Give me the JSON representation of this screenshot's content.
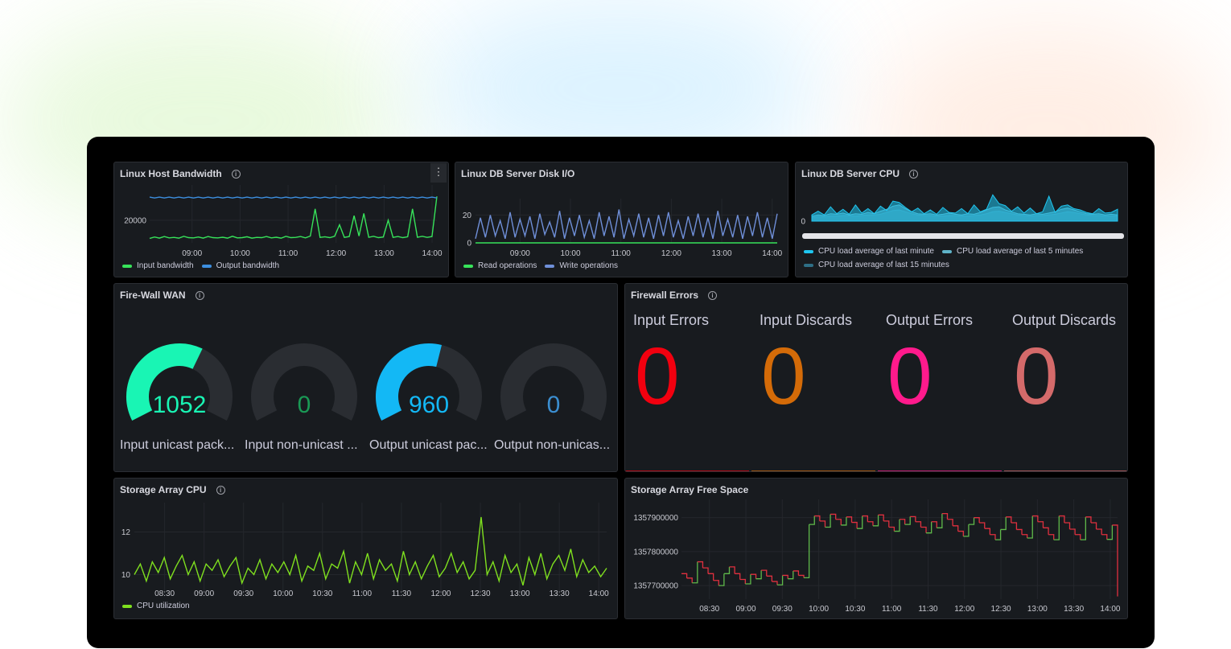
{
  "colors": {
    "green": "#37e35a",
    "blue": "#3d8fe0",
    "teal": "#19f5b4",
    "cyan": "#13b8f5",
    "darkgreen": "#1a9955",
    "steel": "#3b8ed0",
    "red": "#f2000f",
    "orange": "#d46b08",
    "pink": "#ff1a8c",
    "salmon": "#d46a6a",
    "cpu_green": "#7fe01f",
    "rise": "#5fb94a",
    "fall": "#e0303f"
  },
  "panels": {
    "bandwidth": {
      "title": "Linux Host Bandwidth",
      "info_icon": "info-icon",
      "menu_icon": "kebab-menu-icon"
    },
    "disk": {
      "title": "Linux DB Server Disk I/O"
    },
    "dbcpu": {
      "title": "Linux DB Server CPU",
      "info_icon": "info-icon"
    },
    "wan": {
      "title": "Fire-Wall WAN",
      "info_icon": "info-icon"
    },
    "fwerr": {
      "title": "Firewall Errors",
      "info_icon": "info-icon"
    },
    "stcpu": {
      "title": "Storage Array CPU",
      "info_icon": "info-icon"
    },
    "free": {
      "title": "Storage Array Free Space"
    }
  },
  "gauges": [
    {
      "label": "Input unicast pack...",
      "value": "1052",
      "fill_percent": 61,
      "color": "#19f5b4"
    },
    {
      "label": "Input non-unicast ...",
      "value": "0",
      "fill_percent": 0,
      "color": "#1a9955"
    },
    {
      "label": "Output unicast pac...",
      "value": "960",
      "fill_percent": 56,
      "color": "#13b8f5"
    },
    {
      "label": "Output non-unicas...",
      "value": "0",
      "fill_percent": 0,
      "color": "#3b8ed0"
    }
  ],
  "firewall_errors": [
    {
      "label": "Input Errors",
      "value": "0",
      "color": "#f2000f"
    },
    {
      "label": "Input Discards",
      "value": "0",
      "color": "#d46b08"
    },
    {
      "label": "Output Errors",
      "value": "0",
      "color": "#ff1a8c"
    },
    {
      "label": "Output Discards",
      "value": "0",
      "color": "#d46a6a"
    }
  ],
  "chart_data": [
    {
      "id": "bandwidth",
      "type": "line",
      "x_range": [
        "08:07",
        "14:06"
      ],
      "xticks": [
        "09:00",
        "10:00",
        "11:00",
        "12:00",
        "13:00",
        "14:00"
      ],
      "yticks": [
        20000
      ],
      "ylim": [
        10000,
        32000
      ],
      "legend": "bottom",
      "series": [
        {
          "name": "Input bandwidth",
          "color": "#37e35a",
          "values": [
            12000,
            12600,
            12100,
            12800,
            12200,
            12400,
            12100,
            12900,
            12300,
            12200,
            12600,
            12100,
            12800,
            12300,
            12200,
            12500,
            12100,
            12900,
            12200,
            12300,
            12700,
            12100,
            12400,
            12300,
            12800,
            12200,
            12500,
            12100,
            12900,
            12300,
            12400,
            12800,
            12200,
            13000,
            25000,
            12400,
            12700,
            12300,
            12900,
            18000,
            12400,
            12800,
            22000,
            13000,
            23000,
            12500,
            12900,
            12300,
            12600,
            20000,
            12400,
            12800,
            12300,
            12700,
            25000,
            12500,
            12900,
            12400,
            12800,
            30500
          ]
        },
        {
          "name": "Output bandwidth",
          "color": "#3d8fe0",
          "values": [
            30200,
            29800,
            30200,
            29800,
            30200,
            29800,
            30200,
            29800,
            30200,
            29800,
            30200,
            29800,
            30200,
            29800,
            30200,
            29800,
            30200,
            29800,
            30200,
            29800,
            30200,
            29800,
            30200,
            29800,
            30200,
            29800,
            30200,
            29800,
            30200,
            29800,
            30200,
            29800,
            30200,
            29800,
            30200,
            29800,
            30200,
            29800,
            30200,
            29800,
            30200,
            29800,
            30200,
            29800,
            30200,
            29800,
            30200,
            29800,
            30200,
            29800,
            30200,
            29800,
            30200,
            29800,
            30200,
            29800,
            30200,
            29800,
            30200,
            29800
          ]
        }
      ]
    },
    {
      "id": "disk",
      "type": "line",
      "x_range": [
        "08:07",
        "14:06"
      ],
      "xticks": [
        "09:00",
        "10:00",
        "11:00",
        "12:00",
        "13:00",
        "14:00"
      ],
      "yticks": [
        0,
        20
      ],
      "ylim": [
        0,
        26
      ],
      "legend": "bottom",
      "series": [
        {
          "name": "Read operations",
          "color": "#37e35a",
          "values": [
            0,
            0,
            0,
            0,
            0,
            0,
            0,
            0,
            0,
            0,
            0,
            0,
            0,
            0,
            0,
            0,
            0,
            0,
            0,
            0,
            0,
            0,
            0,
            0,
            0,
            0,
            0,
            0,
            0,
            0,
            0,
            0,
            0,
            0,
            0,
            0,
            0,
            0,
            0,
            0
          ]
        },
        {
          "name": "Write operations",
          "color": "#6f8fd8",
          "values": [
            3,
            18,
            4,
            20,
            5,
            16,
            3,
            22,
            4,
            17,
            5,
            19,
            3,
            21,
            6,
            15,
            4,
            23,
            3,
            18,
            5,
            20,
            4,
            16,
            3,
            22,
            5,
            19,
            4,
            24,
            3,
            17,
            5,
            21,
            4,
            18,
            3,
            20,
            5,
            22,
            4,
            16,
            3,
            19,
            5,
            21,
            4,
            18,
            3,
            23,
            5,
            17,
            4,
            20,
            3,
            19,
            5,
            22,
            4,
            18,
            3,
            21
          ]
        }
      ]
    },
    {
      "id": "dbcpu",
      "type": "area",
      "x_range": [
        "08:07",
        "14:06"
      ],
      "xticks": [],
      "yticks": [
        0
      ],
      "ylim": [
        0,
        4.5
      ],
      "legend": "bottom",
      "series": [
        {
          "name": "CPU load average of last 15 minutes",
          "color": "#2e6f86",
          "values": [
            0.6,
            0.7,
            0.7,
            0.8,
            0.8,
            0.9,
            0.9,
            0.8,
            0.9,
            1.0,
            1.0,
            1.1,
            1.4,
            1.7,
            1.8,
            1.5,
            1.2,
            1.0,
            0.9,
            0.9,
            0.8,
            0.8,
            0.9,
            0.9,
            0.8,
            0.8,
            0.9,
            1.0,
            1.2,
            1.5,
            1.6,
            1.4,
            1.2,
            1.0,
            0.9,
            0.8,
            0.9,
            0.9,
            1.0,
            1.1,
            1.3,
            1.5,
            1.4,
            1.2,
            1.0,
            0.9,
            0.9,
            0.8,
            0.8,
            0.8
          ]
        },
        {
          "name": "CPU load average of last 5 minutes",
          "color": "#5fb3c8",
          "values": [
            0.8,
            1.0,
            0.9,
            1.2,
            1.1,
            1.3,
            1.0,
            1.2,
            1.1,
            1.4,
            1.2,
            1.6,
            1.9,
            2.4,
            2.6,
            2.0,
            1.5,
            1.2,
            1.1,
            1.2,
            1.0,
            1.1,
            1.3,
            1.1,
            1.0,
            1.2,
            1.1,
            1.4,
            1.8,
            2.2,
            2.3,
            1.8,
            1.5,
            1.2,
            1.1,
            1.0,
            1.2,
            1.1,
            1.3,
            1.5,
            1.9,
            2.1,
            1.8,
            1.5,
            1.2,
            1.1,
            1.2,
            1.0,
            1.1,
            1.0
          ]
        },
        {
          "name": "CPU load average of last minute",
          "color": "#1fc6f0",
          "values": [
            1.0,
            1.6,
            1.0,
            2.3,
            1.2,
            1.9,
            1.1,
            2.6,
            1.3,
            2.0,
            1.2,
            2.4,
            1.7,
            3.2,
            3.0,
            2.2,
            1.5,
            2.1,
            1.2,
            1.8,
            1.1,
            2.2,
            1.4,
            1.3,
            2.0,
            1.2,
            2.6,
            1.5,
            1.9,
            4.2,
            2.8,
            2.5,
            1.6,
            2.3,
            1.3,
            2.1,
            1.2,
            1.5,
            4.0,
            1.4,
            2.4,
            2.6,
            2.0,
            1.8,
            1.4,
            1.2,
            2.0,
            1.3,
            1.4,
            1.9
          ]
        }
      ]
    },
    {
      "id": "stcpu",
      "type": "line",
      "x_range": [
        "08:07",
        "14:06"
      ],
      "xticks": [
        "08:30",
        "09:00",
        "09:30",
        "10:00",
        "10:30",
        "11:00",
        "11:30",
        "12:00",
        "12:30",
        "13:00",
        "13:30",
        "14:00"
      ],
      "yticks": [
        10,
        12
      ],
      "ylim": [
        9,
        13
      ],
      "legend": "bottom",
      "series": [
        {
          "name": "CPU utilization",
          "color": "#7fe01f",
          "values": [
            10.0,
            10.5,
            9.7,
            10.6,
            10.1,
            10.8,
            9.8,
            10.4,
            10.9,
            10.0,
            10.6,
            9.7,
            10.5,
            10.2,
            10.7,
            9.9,
            10.4,
            10.8,
            9.6,
            10.3,
            10.0,
            10.7,
            9.8,
            10.5,
            10.1,
            10.6,
            10.0,
            10.9,
            9.7,
            10.4,
            10.2,
            11.0,
            9.8,
            10.5,
            10.3,
            11.1,
            9.6,
            10.6,
            10.0,
            11.0,
            9.8,
            10.7,
            10.2,
            10.5,
            9.7,
            11.1,
            10.0,
            10.6,
            9.8,
            10.4,
            10.9,
            9.9,
            10.3,
            11.0,
            10.1,
            10.6,
            9.8,
            10.2,
            12.7,
            10.0,
            10.6,
            9.7,
            10.9,
            10.1,
            10.5,
            9.5,
            10.8,
            10.0,
            11.0,
            9.8,
            10.5,
            10.9,
            10.2,
            11.2,
            9.9,
            10.7,
            10.1,
            10.4,
            9.9,
            10.3
          ]
        }
      ]
    },
    {
      "id": "free",
      "type": "step",
      "x_range": [
        "08:07",
        "14:06"
      ],
      "xticks": [
        "08:30",
        "09:00",
        "09:30",
        "10:00",
        "10:30",
        "11:00",
        "11:30",
        "12:00",
        "12:30",
        "13:00",
        "13:30",
        "14:00"
      ],
      "yticks": [
        1357700000,
        1357800000,
        1357900000
      ],
      "ylim": [
        1357660000,
        1357930000
      ],
      "legend": "none",
      "series": [
        {
          "name": "",
          "color": "#e0303f",
          "values": [
            1357735000,
            1357722000,
            1357708000,
            1357770000,
            1357752000,
            1357735000,
            1357715000,
            1357700000,
            1357735000,
            1357755000,
            1357735000,
            1357718000,
            1357705000,
            1357733000,
            1357720000,
            1357745000,
            1357728000,
            1357712000,
            1357702000,
            1357730000,
            1357720000,
            1357743000,
            1357730000,
            1357723000,
            1357880000,
            1357905000,
            1357890000,
            1357872000,
            1357910000,
            1357895000,
            1357878000,
            1357902000,
            1357886000,
            1357868000,
            1357905000,
            1357888000,
            1357876000,
            1357908000,
            1357890000,
            1357872000,
            1357860000,
            1357895000,
            1357880000,
            1357903000,
            1357888000,
            1357872000,
            1357855000,
            1357888000,
            1357870000,
            1357912000,
            1357895000,
            1357876000,
            1357860000,
            1357845000,
            1357880000,
            1357900000,
            1357885000,
            1357868000,
            1357850000,
            1357835000,
            1357865000,
            1357902000,
            1357885000,
            1357865000,
            1357850000,
            1357840000,
            1357905000,
            1357888000,
            1357870000,
            1357850000,
            1357835000,
            1357905000,
            1357885000,
            1357866000,
            1357850000,
            1357835000,
            1357902000,
            1357885000,
            1357866000,
            1357850000,
            1357836000,
            1357878000,
            1357668000
          ]
        }
      ]
    }
  ]
}
